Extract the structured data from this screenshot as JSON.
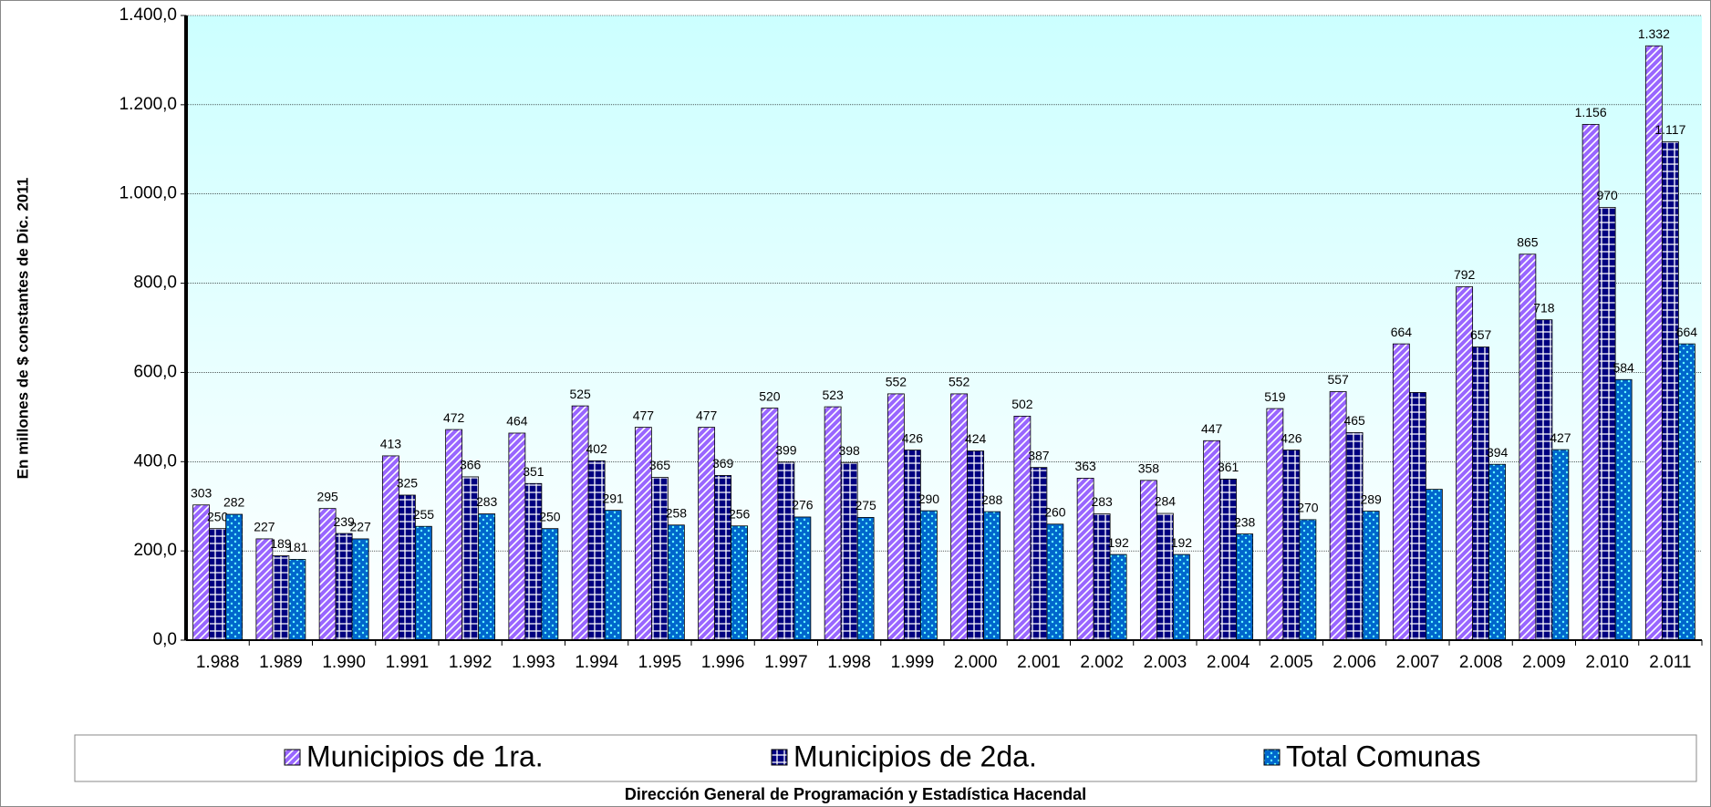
{
  "chart_data": {
    "type": "bar",
    "ylabel": "En millones de $ constantes de Dic. 2011",
    "footer": "Dirección General de Programación y Estadística Hacendal",
    "categories": [
      "1.988",
      "1.989",
      "1.990",
      "1.991",
      "1.992",
      "1.993",
      "1.994",
      "1.995",
      "1.996",
      "1.997",
      "1.998",
      "1.999",
      "2.000",
      "2.001",
      "2.002",
      "2.003",
      "2.004",
      "2.005",
      "2.006",
      "2.007",
      "2.008",
      "2.009",
      "2.010",
      "2.011"
    ],
    "series": [
      {
        "name": "Municipios de 1ra.",
        "color": "#9966ff",
        "values": [
          303,
          227,
          295,
          413,
          472,
          464,
          525,
          477,
          477,
          520,
          523,
          552,
          552,
          502,
          363,
          358,
          447,
          519,
          557,
          664,
          792,
          865,
          1156,
          1332
        ],
        "value_labels": [
          "303",
          "227",
          "295",
          "413",
          "472",
          "464",
          "525",
          "477",
          "477",
          "520",
          "523",
          "552",
          "552",
          "502",
          "363",
          "358",
          "447",
          "519",
          "557",
          "664",
          "792",
          "865",
          "1.156",
          "1.332"
        ]
      },
      {
        "name": "Municipios de 2da.",
        "color": "#000080",
        "values": [
          250,
          189,
          239,
          325,
          366,
          351,
          402,
          365,
          369,
          399,
          398,
          426,
          424,
          387,
          283,
          284,
          361,
          426,
          465,
          555,
          657,
          718,
          970,
          1117
        ],
        "value_labels": [
          "250",
          "189",
          "239",
          "325",
          "366",
          "351",
          "402",
          "365",
          "369",
          "399",
          "398",
          "426",
          "424",
          "387",
          "283",
          "284",
          "361",
          "426",
          "465",
          null,
          "657",
          "718",
          "970",
          "1.117"
        ]
      },
      {
        "name": "Total Comunas",
        "color": "#0066cc",
        "values": [
          282,
          181,
          227,
          255,
          283,
          250,
          291,
          258,
          256,
          276,
          275,
          290,
          288,
          260,
          192,
          192,
          238,
          270,
          289,
          338,
          394,
          427,
          584,
          664
        ],
        "value_labels": [
          "282",
          "181",
          "227",
          "255",
          "283",
          "250",
          "291",
          "258",
          "256",
          "276",
          "275",
          "290",
          "288",
          "260",
          "192",
          "192",
          "238",
          "270",
          "289",
          null,
          "394",
          "427",
          "584",
          "664"
        ]
      }
    ],
    "ylim": [
      0,
      1400
    ],
    "yticks": [
      {
        "value": 0,
        "label": "0,0"
      },
      {
        "value": 200,
        "label": "200,0"
      },
      {
        "value": 400,
        "label": "400,0"
      },
      {
        "value": 600,
        "label": "600,0"
      },
      {
        "value": 800,
        "label": "800,0"
      },
      {
        "value": 1000,
        "label": "1.000,0"
      },
      {
        "value": 1200,
        "label": "1.200,0"
      },
      {
        "value": 1400,
        "label": "1.400,0"
      }
    ],
    "grid": true,
    "legend": "bottom"
  }
}
